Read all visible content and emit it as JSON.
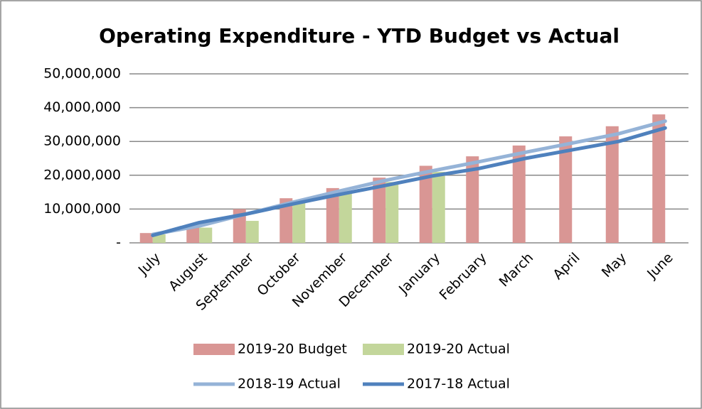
{
  "chart_data": {
    "type": "bar",
    "title": "Operating Expenditure - YTD Budget vs Actual",
    "categories": [
      "July",
      "August",
      "September",
      "October",
      "November",
      "December",
      "January",
      "February",
      "March",
      "April",
      "May",
      "June"
    ],
    "series": [
      {
        "name": "2019-20 Budget",
        "type": "bar",
        "color": "#d99694",
        "values": [
          2900000,
          5500000,
          10000000,
          13200000,
          16200000,
          19300000,
          22800000,
          25600000,
          28800000,
          31500000,
          34500000,
          38000000
        ]
      },
      {
        "name": "2019-20 Actual",
        "type": "bar",
        "color": "#c3d69b",
        "values": [
          2500000,
          4500000,
          6500000,
          12000000,
          14500000,
          18000000,
          21000000,
          null,
          null,
          null,
          null,
          null
        ]
      },
      {
        "name": "2018-19 Actual",
        "type": "line",
        "color": "#95b3d7",
        "values": [
          2500000,
          5000000,
          8500000,
          12000000,
          15300000,
          18500000,
          21300000,
          24000000,
          26800000,
          29500000,
          32300000,
          36000000
        ]
      },
      {
        "name": "2017-18 Actual",
        "type": "line",
        "color": "#4f81bd",
        "values": [
          2200000,
          6000000,
          8500000,
          11500000,
          14300000,
          17000000,
          19800000,
          22000000,
          25000000,
          27500000,
          30000000,
          34000000
        ]
      }
    ],
    "ylim": [
      0,
      50000000
    ],
    "yticks": [
      {
        "value": 0,
        "label": "-"
      },
      {
        "value": 10000000,
        "label": "10,000,000"
      },
      {
        "value": 20000000,
        "label": "20,000,000"
      },
      {
        "value": 30000000,
        "label": "30,000,000"
      },
      {
        "value": 40000000,
        "label": "40,000,000"
      },
      {
        "value": 50000000,
        "label": "50,000,000"
      }
    ],
    "grid": true,
    "legend": "bottom"
  }
}
